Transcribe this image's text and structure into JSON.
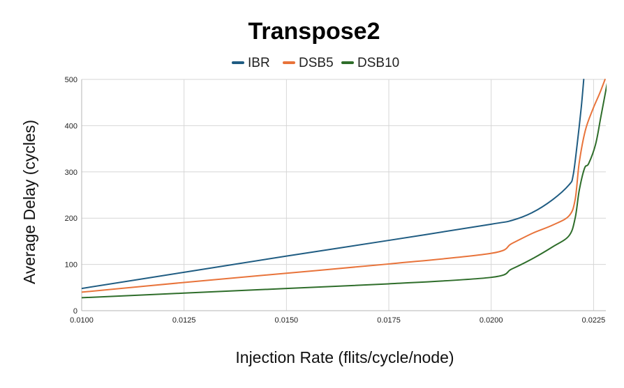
{
  "chart_data": {
    "type": "line",
    "title": "Transpose2",
    "xlabel": "Injection Rate (flits/cycle/node)",
    "ylabel": "Average Delay (cycles)",
    "xlim": [
      0.01,
      0.0228
    ],
    "ylim": [
      0,
      500
    ],
    "x_ticks": [
      0.01,
      0.0125,
      0.015,
      0.0175,
      0.02,
      0.0225
    ],
    "x_tick_labels": [
      "0.0100",
      "0.0125",
      "0.0150",
      "0.0175",
      "0.0200",
      "0.0225"
    ],
    "y_ticks": [
      0,
      100,
      200,
      300,
      400,
      500
    ],
    "y_tick_labels": [
      "0",
      "100",
      "200",
      "300",
      "400",
      "500"
    ],
    "grid": true,
    "legend_position": "top-center",
    "series": [
      {
        "name": "IBR",
        "color": "#1f5c82",
        "points": [
          [
            0.01,
            48
          ],
          [
            0.0125,
            83
          ],
          [
            0.015,
            118
          ],
          [
            0.0175,
            152
          ],
          [
            0.02,
            187
          ],
          [
            0.0205,
            195
          ],
          [
            0.021,
            212
          ],
          [
            0.0215,
            240
          ],
          [
            0.0219,
            272
          ],
          [
            0.022,
            292
          ],
          [
            0.0221,
            360
          ],
          [
            0.0222,
            440
          ],
          [
            0.02226,
            500
          ]
        ]
      },
      {
        "name": "DSB5",
        "color": "#e8733a",
        "points": [
          [
            0.01,
            40
          ],
          [
            0.0125,
            61
          ],
          [
            0.015,
            81
          ],
          [
            0.0175,
            101
          ],
          [
            0.02,
            124
          ],
          [
            0.0205,
            145
          ],
          [
            0.021,
            167
          ],
          [
            0.0215,
            185
          ],
          [
            0.0219,
            205
          ],
          [
            0.02205,
            240
          ],
          [
            0.02215,
            320
          ],
          [
            0.0223,
            390
          ],
          [
            0.02248,
            435
          ],
          [
            0.02265,
            470
          ],
          [
            0.02278,
            500
          ]
        ]
      },
      {
        "name": "DSB10",
        "color": "#2e6d2a",
        "points": [
          [
            0.01,
            28
          ],
          [
            0.0125,
            38
          ],
          [
            0.015,
            48
          ],
          [
            0.0175,
            58
          ],
          [
            0.02,
            72
          ],
          [
            0.0205,
            90
          ],
          [
            0.021,
            112
          ],
          [
            0.0215,
            138
          ],
          [
            0.0219,
            162
          ],
          [
            0.02205,
            200
          ],
          [
            0.02215,
            260
          ],
          [
            0.02228,
            308
          ],
          [
            0.02238,
            318
          ],
          [
            0.02255,
            360
          ],
          [
            0.02268,
            420
          ],
          [
            0.02285,
            500
          ]
        ]
      }
    ]
  }
}
